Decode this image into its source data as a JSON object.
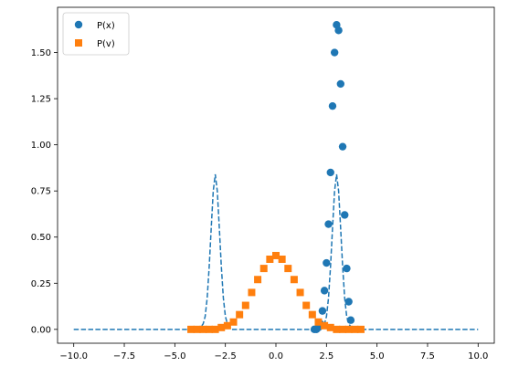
{
  "chart_data": {
    "type": "scatter",
    "title": "",
    "xlabel": "",
    "ylabel": "",
    "xlim": [
      -10.8,
      10.8
    ],
    "ylim": [
      -0.075,
      1.745
    ],
    "xticks": [
      -10.0,
      -7.5,
      -5.0,
      -2.5,
      0.0,
      2.5,
      5.0,
      7.5,
      10.0
    ],
    "xtick_labels": [
      "−10.0",
      "−7.5",
      "−5.0",
      "−2.5",
      "0.0",
      "2.5",
      "5.0",
      "7.5",
      "10.0"
    ],
    "yticks": [
      0.0,
      0.25,
      0.5,
      0.75,
      1.0,
      1.25,
      1.5
    ],
    "ytick_labels": [
      "0.00",
      "0.25",
      "0.50",
      "0.75",
      "1.00",
      "1.25",
      "1.50"
    ],
    "grid": false,
    "legend": {
      "position": "top-left"
    },
    "series": [
      {
        "name": "P(x)",
        "kind": "scatter",
        "marker": "circle",
        "color": "#1f77b4",
        "x": [
          1.9,
          2.0,
          2.1,
          2.2,
          2.3,
          2.4,
          2.5,
          2.6,
          2.7,
          2.8,
          2.9,
          3.0,
          3.1,
          3.2,
          3.3,
          3.4,
          3.5,
          3.6,
          3.7
        ],
        "y": [
          0.0,
          0.0,
          0.01,
          0.03,
          0.1,
          0.21,
          0.36,
          0.57,
          0.85,
          1.21,
          1.5,
          1.65,
          1.62,
          1.33,
          0.99,
          0.62,
          0.33,
          0.15,
          0.05
        ]
      },
      {
        "name": "P(v)",
        "kind": "scatter",
        "marker": "square",
        "color": "#ff7f0e",
        "x": [
          -4.2,
          -3.9,
          -3.6,
          -3.3,
          -3.0,
          -2.7,
          -2.4,
          -2.1,
          -1.8,
          -1.5,
          -1.2,
          -0.9,
          -0.6,
          -0.3,
          0.0,
          0.3,
          0.6,
          0.9,
          1.2,
          1.5,
          1.8,
          2.1,
          2.4,
          2.7,
          3.0,
          3.3,
          3.6,
          3.9,
          4.2
        ],
        "y": [
          0.0,
          0.0,
          0.0,
          0.0,
          0.0,
          0.01,
          0.02,
          0.04,
          0.08,
          0.13,
          0.2,
          0.27,
          0.33,
          0.38,
          0.4,
          0.38,
          0.33,
          0.27,
          0.2,
          0.13,
          0.08,
          0.04,
          0.02,
          0.01,
          0.0,
          0.0,
          0.0,
          0.0,
          0.0
        ]
      },
      {
        "name": "",
        "kind": "dashed-line",
        "color": "#1f77b4",
        "x": [
          -10.0,
          -9.0,
          -8.0,
          -7.0,
          -6.0,
          -5.0,
          -4.0,
          -3.8,
          -3.6,
          -3.5,
          -3.4,
          -3.3,
          -3.2,
          -3.1,
          -3.0,
          -2.9,
          -2.8,
          -2.7,
          -2.6,
          -2.5,
          -2.4,
          -2.2,
          -2.0,
          -1.0,
          0.0,
          1.0,
          2.0,
          2.2,
          2.4,
          2.5,
          2.6,
          2.7,
          2.8,
          2.9,
          3.0,
          3.1,
          3.2,
          3.3,
          3.4,
          3.5,
          3.6,
          3.8,
          4.0,
          5.0,
          6.0,
          7.0,
          8.0,
          9.0,
          10.0
        ],
        "y": [
          0.0,
          0.0,
          0.0,
          0.0,
          0.0,
          0.0,
          0.0,
          0.0,
          0.03,
          0.07,
          0.17,
          0.34,
          0.55,
          0.75,
          0.84,
          0.75,
          0.55,
          0.34,
          0.17,
          0.07,
          0.03,
          0.0,
          0.0,
          0.0,
          0.0,
          0.0,
          0.0,
          0.0,
          0.03,
          0.07,
          0.17,
          0.34,
          0.55,
          0.75,
          0.84,
          0.75,
          0.55,
          0.34,
          0.17,
          0.07,
          0.03,
          0.0,
          0.0,
          0.0,
          0.0,
          0.0,
          0.0,
          0.0,
          0.0
        ]
      }
    ]
  }
}
